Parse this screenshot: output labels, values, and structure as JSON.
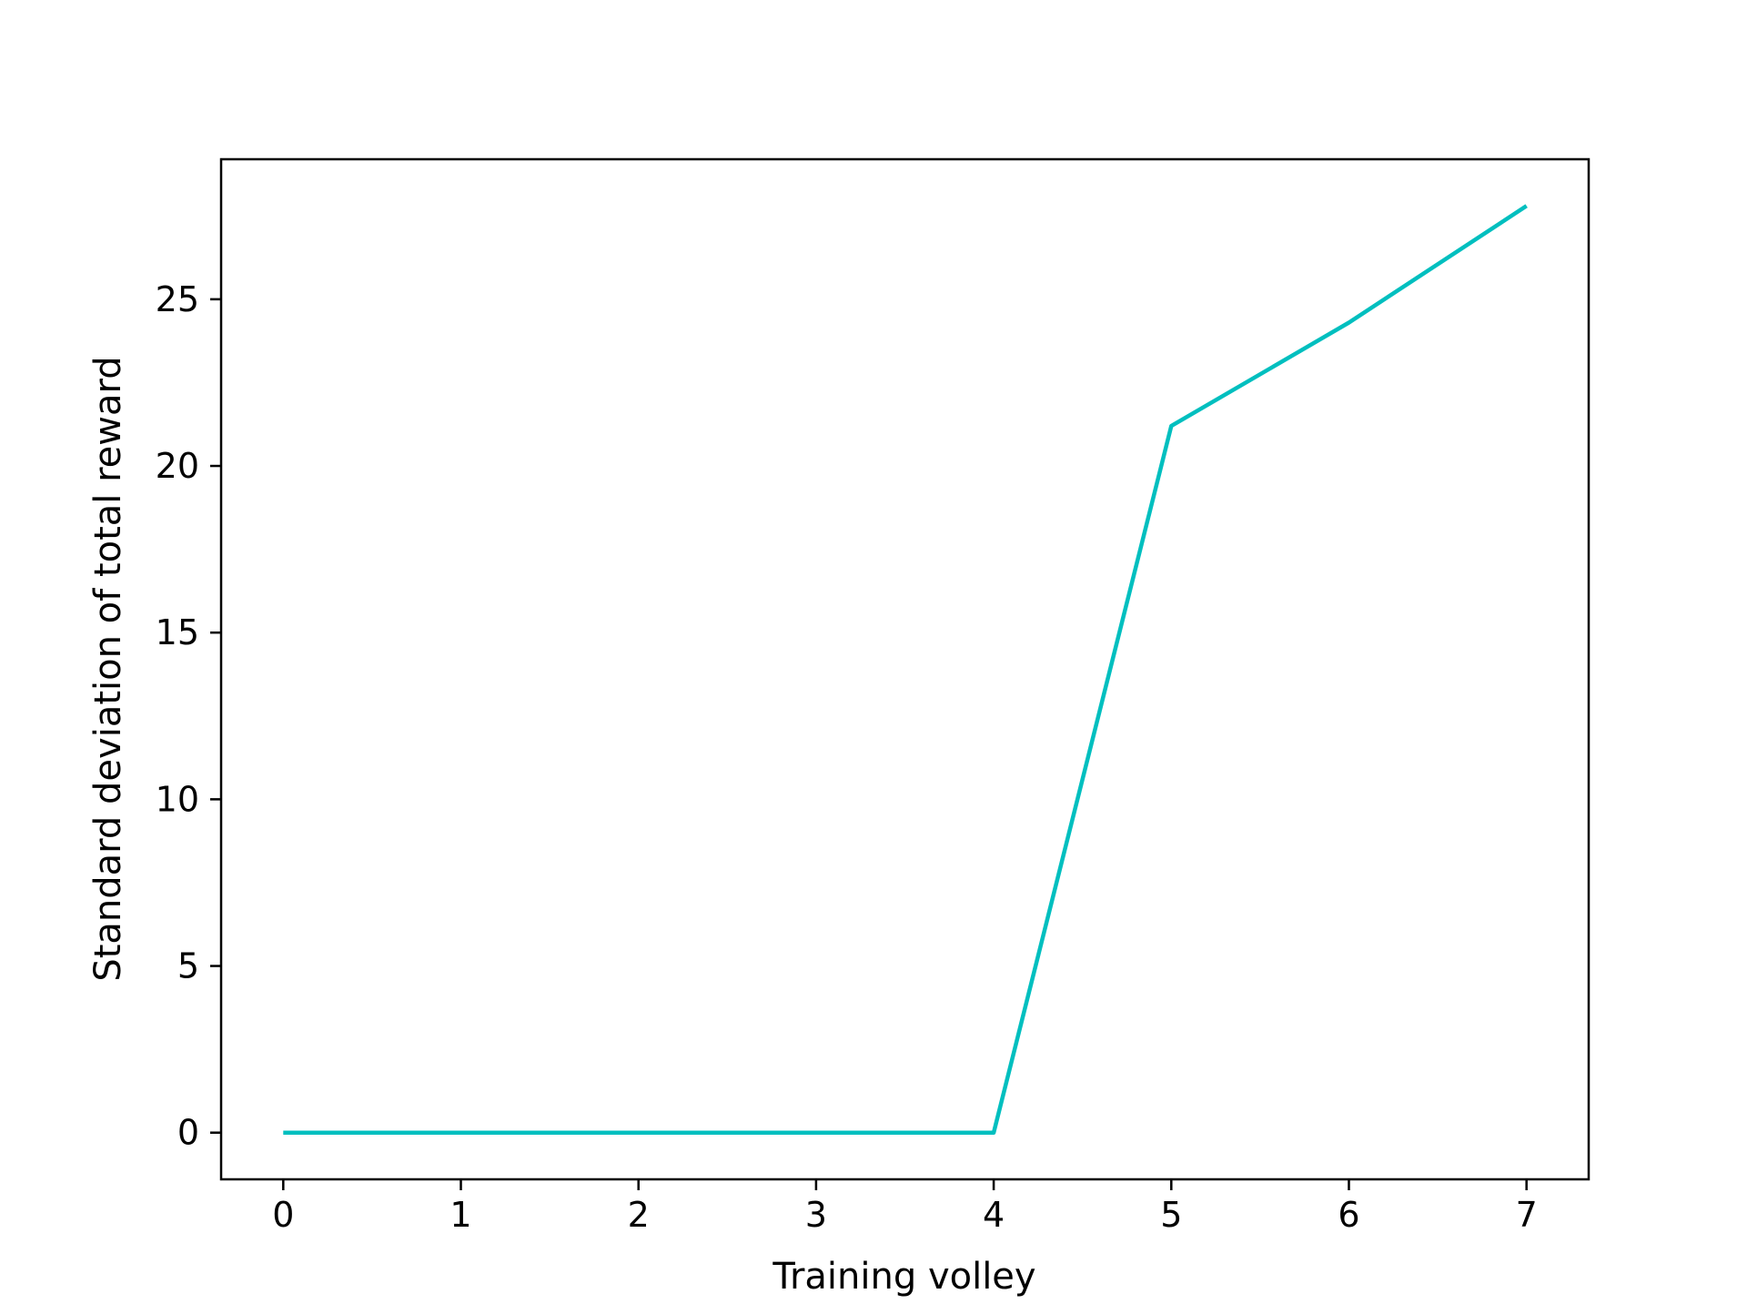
{
  "chart_data": {
    "type": "line",
    "title": "",
    "xlabel": "Training volley",
    "ylabel": "Standard deviation of total reward",
    "x": [
      0,
      1,
      2,
      3,
      4,
      5,
      6,
      7
    ],
    "series": [
      {
        "values": [
          0,
          0,
          0,
          0,
          0,
          21.2,
          24.3,
          27.8
        ],
        "color": "#00bfbf"
      }
    ],
    "xlim": [
      -0.35,
      7.35
    ],
    "ylim": [
      -1.4,
      29.2
    ],
    "xticks": [
      0,
      1,
      2,
      3,
      4,
      5,
      6,
      7
    ],
    "yticks": [
      0,
      5,
      10,
      15,
      20,
      25
    ],
    "grid": false,
    "legend": "none"
  }
}
